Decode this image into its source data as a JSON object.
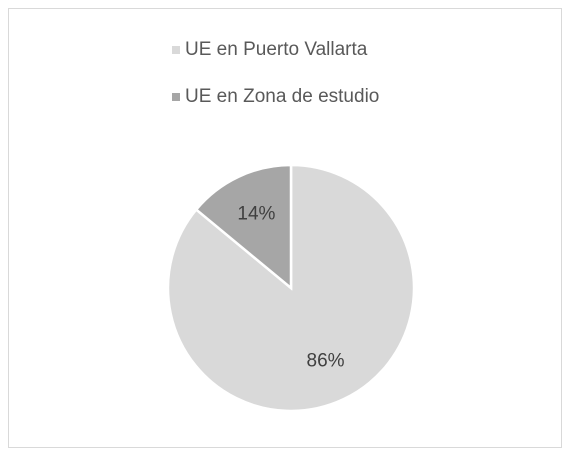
{
  "chart_data": {
    "type": "pie",
    "categories": [
      "UE en Puerto Vallarta",
      "UE en Zona de estudio"
    ],
    "values": [
      86,
      14
    ],
    "value_labels": [
      "86%",
      "14%"
    ],
    "colors": [
      "#d9d9d9",
      "#a6a6a6"
    ],
    "legend": "top"
  }
}
